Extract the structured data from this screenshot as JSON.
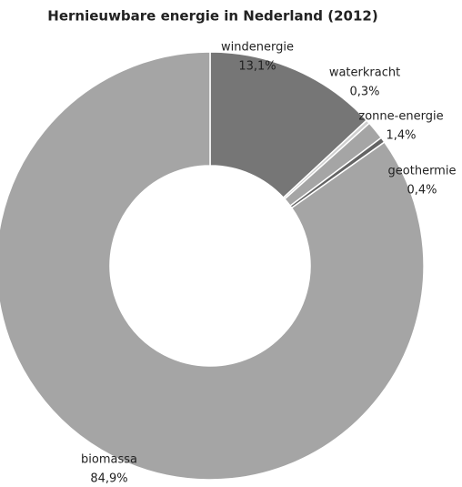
{
  "chart_data": {
    "type": "donut",
    "title": "Hernieuwbare energie in Nederland (2012)",
    "categories": [
      "windenergie",
      "waterkracht",
      "zonne-energie",
      "geothermie",
      "biomassa"
    ],
    "values": [
      13.1,
      0.3,
      1.4,
      0.4,
      84.9
    ],
    "value_labels": [
      "13,1%",
      "0,3%",
      "1,4%",
      "0,4%",
      "84,9%"
    ],
    "colors": [
      "#767676",
      "#cfcfcf",
      "#a5a5a5",
      "#646464",
      "#a5a5a5"
    ]
  }
}
